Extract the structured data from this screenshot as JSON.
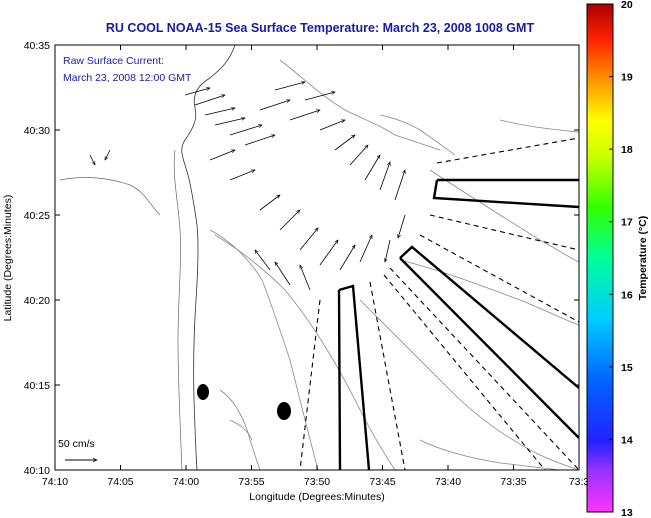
{
  "chart_data": {
    "type": "map",
    "title": "RU COOL  NOAA-15  Sea Surface Temperature:  March 23, 2008 1008 GMT",
    "inset": {
      "line1": "Raw Surface Current:",
      "line2": "March 23, 2008 12:00 GMT"
    },
    "scale_label": "50 cm/s",
    "xlabel": "Longitude (Degrees:Minutes)",
    "ylabel": "Latitude (Degrees:Minutes)",
    "x_ticks": [
      "74:10",
      "74:05",
      "74:00",
      "73:55",
      "73:50",
      "73:45",
      "73:40",
      "73:35",
      "73:3"
    ],
    "y_ticks": [
      "40:35",
      "40:30",
      "40:25",
      "40:20",
      "40:15",
      "40:10"
    ],
    "colorbar": {
      "label": "Temperature (°C)",
      "ticks": [
        "20",
        "19",
        "18",
        "17",
        "16",
        "15",
        "14",
        "13"
      ],
      "range": [
        13,
        20
      ]
    },
    "markers": [
      {
        "lon": "73:58.8",
        "lat": "40:14.5"
      },
      {
        "lon": "73:52.5",
        "lat": "40:13.5"
      }
    ],
    "colors": {
      "title": "#1a1aa6",
      "frame": "#000000",
      "contour": "#808080"
    }
  }
}
